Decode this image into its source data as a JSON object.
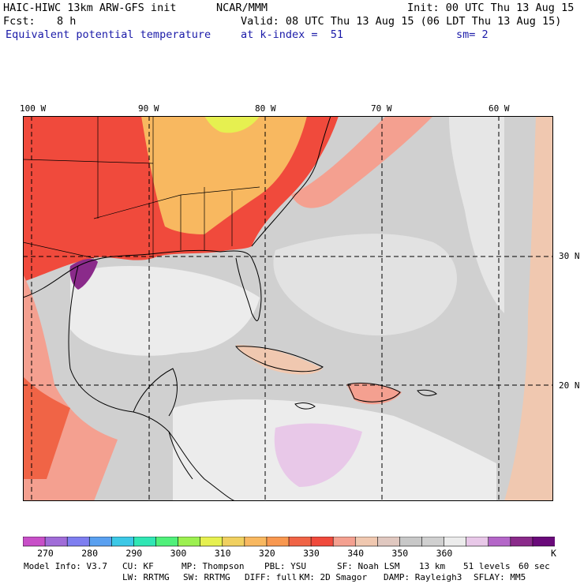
{
  "header": {
    "model_title": "HAIC-HIWC 13km ARW-GFS init",
    "org": "NCAR/MMM",
    "init": "Init: 00 UTC Thu 13 Aug 15",
    "fcst_label": "Fcst:",
    "fcst_value": "8 h",
    "valid": "Valid: 08 UTC Thu 13 Aug 15 (06 LDT Thu 13 Aug 15)",
    "field": "Equivalent potential temperature",
    "level": "at k-index =  51",
    "smooth": "sm= 2"
  },
  "map": {
    "lon_labels": [
      "100 W",
      "90 W",
      "80 W",
      "70 W",
      "60 W"
    ],
    "lat_labels": [
      "30 N",
      "20 N"
    ]
  },
  "colorbar": {
    "colors": [
      "#c84fc8",
      "#a06cd8",
      "#7e7ef0",
      "#5aa0f0",
      "#3cc8e6",
      "#30e6b4",
      "#50f07a",
      "#9cf050",
      "#e6f050",
      "#f0d060",
      "#f8b860",
      "#f89850",
      "#f06446",
      "#f04a3c",
      "#f4a090",
      "#f0c8b0",
      "#e0c8c0",
      "#c8c8c8",
      "#d0d0d0",
      "#ececec",
      "#e8c8e8",
      "#b466c8",
      "#8a2a8a",
      "#6a0a7a"
    ],
    "labels": [
      "270",
      "280",
      "290",
      "300",
      "310",
      "320",
      "330",
      "340",
      "350",
      "360"
    ],
    "unit": "K"
  },
  "model_info": {
    "line1": [
      "Model Info: V3.7",
      "CU: KF",
      "MP: Thompson",
      "PBL: YSU",
      "SF: Noah LSM",
      "13 km",
      "51 levels",
      "60 sec"
    ],
    "line2": [
      "LW: RRTMG",
      "SW: RRTMG",
      "DIFF: full",
      "KM: 2D Smagor",
      "DAMP: Rayleigh3",
      "SFLAY: MM5"
    ]
  }
}
